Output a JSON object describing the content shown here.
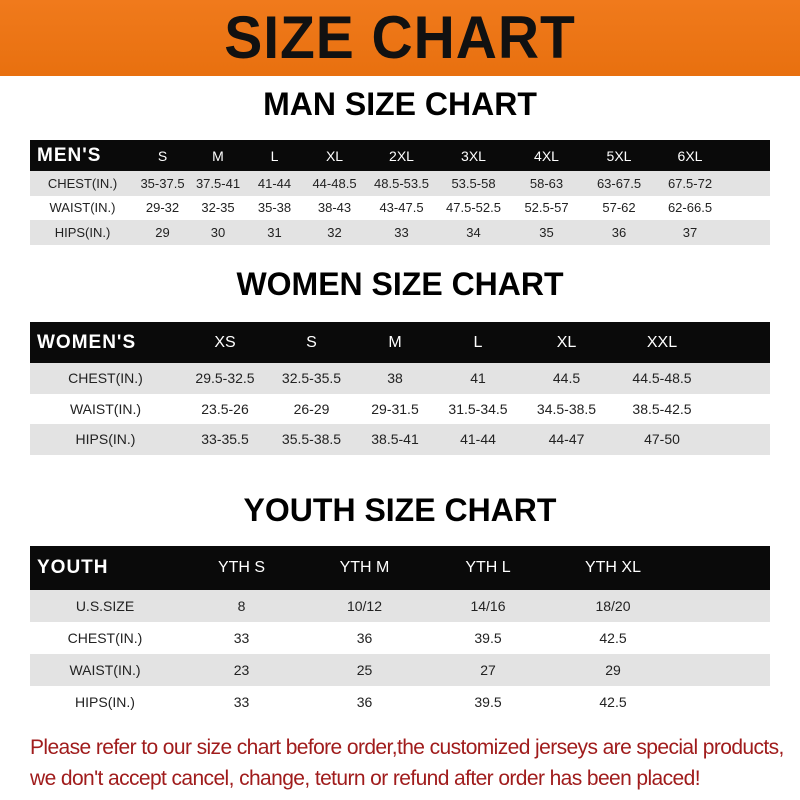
{
  "banner": {
    "title": "SIZE CHART",
    "color": "#ef771a"
  },
  "men": {
    "title": "MAN SIZE CHART",
    "header": [
      "MEN'S",
      "S",
      "M",
      "L",
      "XL",
      "2XL",
      "3XL",
      "4XL",
      "5XL",
      "6XL"
    ],
    "rows": [
      [
        "CHEST(IN.)",
        "35-37.5",
        "37.5-41",
        "41-44",
        "44-48.5",
        "48.5-53.5",
        "53.5-58",
        "58-63",
        "63-67.5",
        "67.5-72"
      ],
      [
        "WAIST(IN.)",
        "29-32",
        "32-35",
        "35-38",
        "38-43",
        "43-47.5",
        "47.5-52.5",
        "52.5-57",
        "57-62",
        "62-66.5"
      ],
      [
        "HIPS(IN.)",
        "29",
        "30",
        "31",
        "32",
        "33",
        "34",
        "35",
        "36",
        "37"
      ]
    ]
  },
  "women": {
    "title": "WOMEN SIZE CHART",
    "header": [
      "WOMEN'S",
      "XS",
      "S",
      "M",
      "L",
      "XL",
      "XXL"
    ],
    "rows": [
      [
        "CHEST(IN.)",
        "29.5-32.5",
        "32.5-35.5",
        "38",
        "41",
        "44.5",
        "44.5-48.5"
      ],
      [
        "WAIST(IN.)",
        "23.5-26",
        "26-29",
        "29-31.5",
        "31.5-34.5",
        "34.5-38.5",
        "38.5-42.5"
      ],
      [
        "HIPS(IN.)",
        "33-35.5",
        "35.5-38.5",
        "38.5-41",
        "41-44",
        "44-47",
        "47-50"
      ]
    ]
  },
  "youth": {
    "title": "YOUTH SIZE CHART",
    "header": [
      "YOUTH",
      "YTH S",
      "YTH M",
      "YTH L",
      "YTH XL"
    ],
    "rows": [
      [
        "U.S.SIZE",
        "8",
        "10/12",
        "14/16",
        "18/20"
      ],
      [
        "CHEST(IN.)",
        "33",
        "36",
        "39.5",
        "42.5"
      ],
      [
        "WAIST(IN.)",
        "23",
        "25",
        "27",
        "29"
      ],
      [
        "HIPS(IN.)",
        "33",
        "36",
        "39.5",
        "42.5"
      ]
    ]
  },
  "note": {
    "line1": "Please refer to our size chart before order,the customized jerseys are special products,",
    "line2": "we don't accept cancel, change, teturn or refund after order has been placed!",
    "color": "#a01c1c"
  }
}
